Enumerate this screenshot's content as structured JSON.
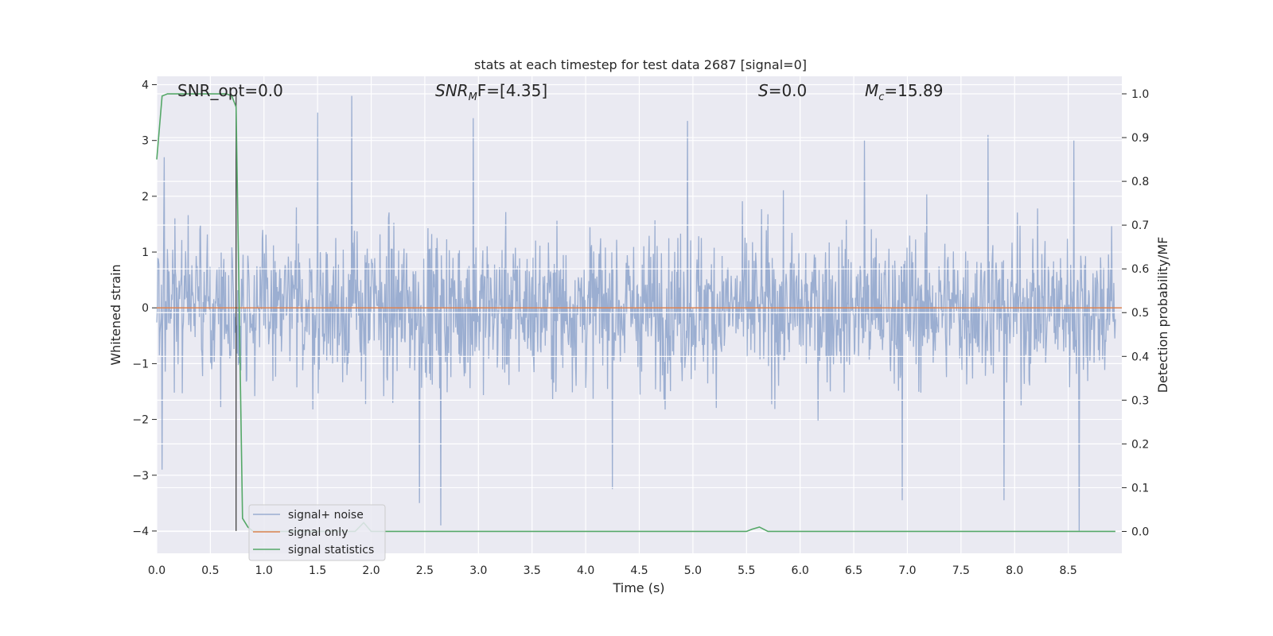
{
  "chart_data": {
    "type": "line",
    "title": "stats at each timestep for test data 2687 [signal=0]",
    "xlabel": "Time (s)",
    "ylabel_left": "Whitened strain",
    "ylabel_right": "Detection probability/MF",
    "xlim": [
      0.0,
      9.0
    ],
    "ylim_left": [
      -4.4,
      4.15
    ],
    "ylim_right": [
      -0.05,
      1.04
    ],
    "xticks": [
      "0.0",
      "0.5",
      "1.0",
      "1.5",
      "2.0",
      "2.5",
      "3.0",
      "3.5",
      "4.0",
      "4.5",
      "5.0",
      "5.5",
      "6.0",
      "6.5",
      "7.0",
      "7.5",
      "8.0",
      "8.5"
    ],
    "yticks_left": [
      "4",
      "3",
      "2",
      "1",
      "0",
      "−1",
      "−2",
      "−3",
      "−4"
    ],
    "yticks_right": [
      "1.0",
      "0.9",
      "0.8",
      "0.7",
      "0.6",
      "0.5",
      "0.4",
      "0.3",
      "0.2",
      "0.1",
      "0.0"
    ],
    "grid": true,
    "legend_position": "lower left",
    "annotations": {
      "snr_opt": "SNR_opt=0.0",
      "snr_mf_main": "SNR",
      "snr_mf_sub": "M",
      "snr_mf_tail": "F=[4.35]",
      "s_label": "S",
      "s_value": "=0.0",
      "mc_main": "M",
      "mc_sub": "c",
      "mc_value": "=15.89"
    },
    "marker_line_x": 0.74,
    "series": [
      {
        "name": "signal+ noise",
        "axis": "left",
        "color": "#4c72b0",
        "description_values": "white noise, mostly within [-2.2, 2.6]",
        "peaks": [
          [
            0.07,
            2.7
          ],
          [
            1.5,
            3.5
          ],
          [
            1.82,
            3.8
          ],
          [
            2.95,
            3.4
          ],
          [
            4.95,
            3.35
          ],
          [
            6.6,
            3.0
          ],
          [
            7.75,
            3.1
          ],
          [
            8.55,
            3.0
          ],
          [
            0.05,
            -2.9
          ],
          [
            2.45,
            -3.5
          ],
          [
            2.65,
            -3.9
          ],
          [
            4.25,
            -3.25
          ],
          [
            6.95,
            -3.45
          ],
          [
            7.9,
            -3.45
          ],
          [
            8.6,
            -4.0
          ]
        ]
      },
      {
        "name": "signal only",
        "axis": "left",
        "color": "#dd8452",
        "x": [
          0.0,
          9.0
        ],
        "y": [
          0.0,
          0.0
        ]
      },
      {
        "name": "signal statistics",
        "axis": "right",
        "color": "#55a868",
        "x": [
          0.0,
          0.05,
          0.1,
          0.15,
          0.3,
          0.5,
          0.65,
          0.7,
          0.74,
          0.8,
          0.85,
          0.9,
          1.0,
          1.5,
          1.85,
          1.93,
          2.0,
          2.5,
          5.5,
          5.55,
          5.62,
          5.7,
          6.0,
          7.0,
          8.0,
          8.94
        ],
        "y": [
          0.85,
          0.995,
          1.0,
          1.0,
          1.0,
          1.0,
          1.0,
          0.995,
          0.97,
          0.03,
          0.01,
          0.0,
          0.0,
          0.0,
          0.0,
          0.02,
          0.0,
          0.0,
          0.0,
          0.005,
          0.01,
          0.0,
          0.0,
          0.0,
          0.0,
          0.0
        ]
      }
    ]
  }
}
